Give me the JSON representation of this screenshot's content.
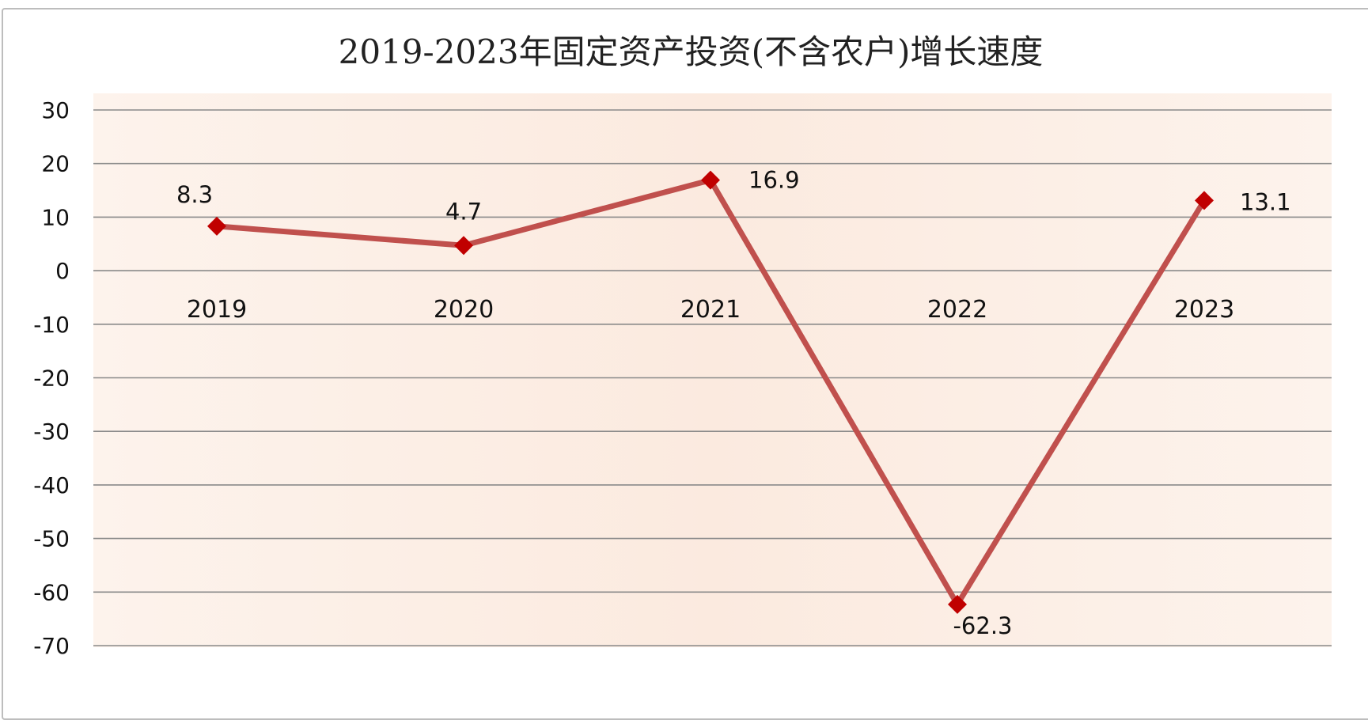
{
  "chart_data": {
    "type": "line",
    "title": "2019-2023年固定资产投资(不含农户)增长速度",
    "xlabel": "",
    "ylabel": "",
    "categories": [
      "2019",
      "2020",
      "2021",
      "2022",
      "2023"
    ],
    "series": [
      {
        "values": [
          8.3,
          4.7,
          16.9,
          -62.3,
          13.1
        ]
      }
    ],
    "data_labels": [
      "8.3",
      "4.7",
      "16.9",
      "-62.3",
      "13.1"
    ],
    "ylim": [
      -70,
      30
    ],
    "yticks": [
      30,
      20,
      10,
      0,
      -10,
      -20,
      -30,
      -40,
      -50,
      -60,
      -70
    ],
    "grid": true,
    "legend": "none",
    "line_color": "#c0504d",
    "marker_color": "#c00000",
    "plot_background": "#fbeee4"
  }
}
